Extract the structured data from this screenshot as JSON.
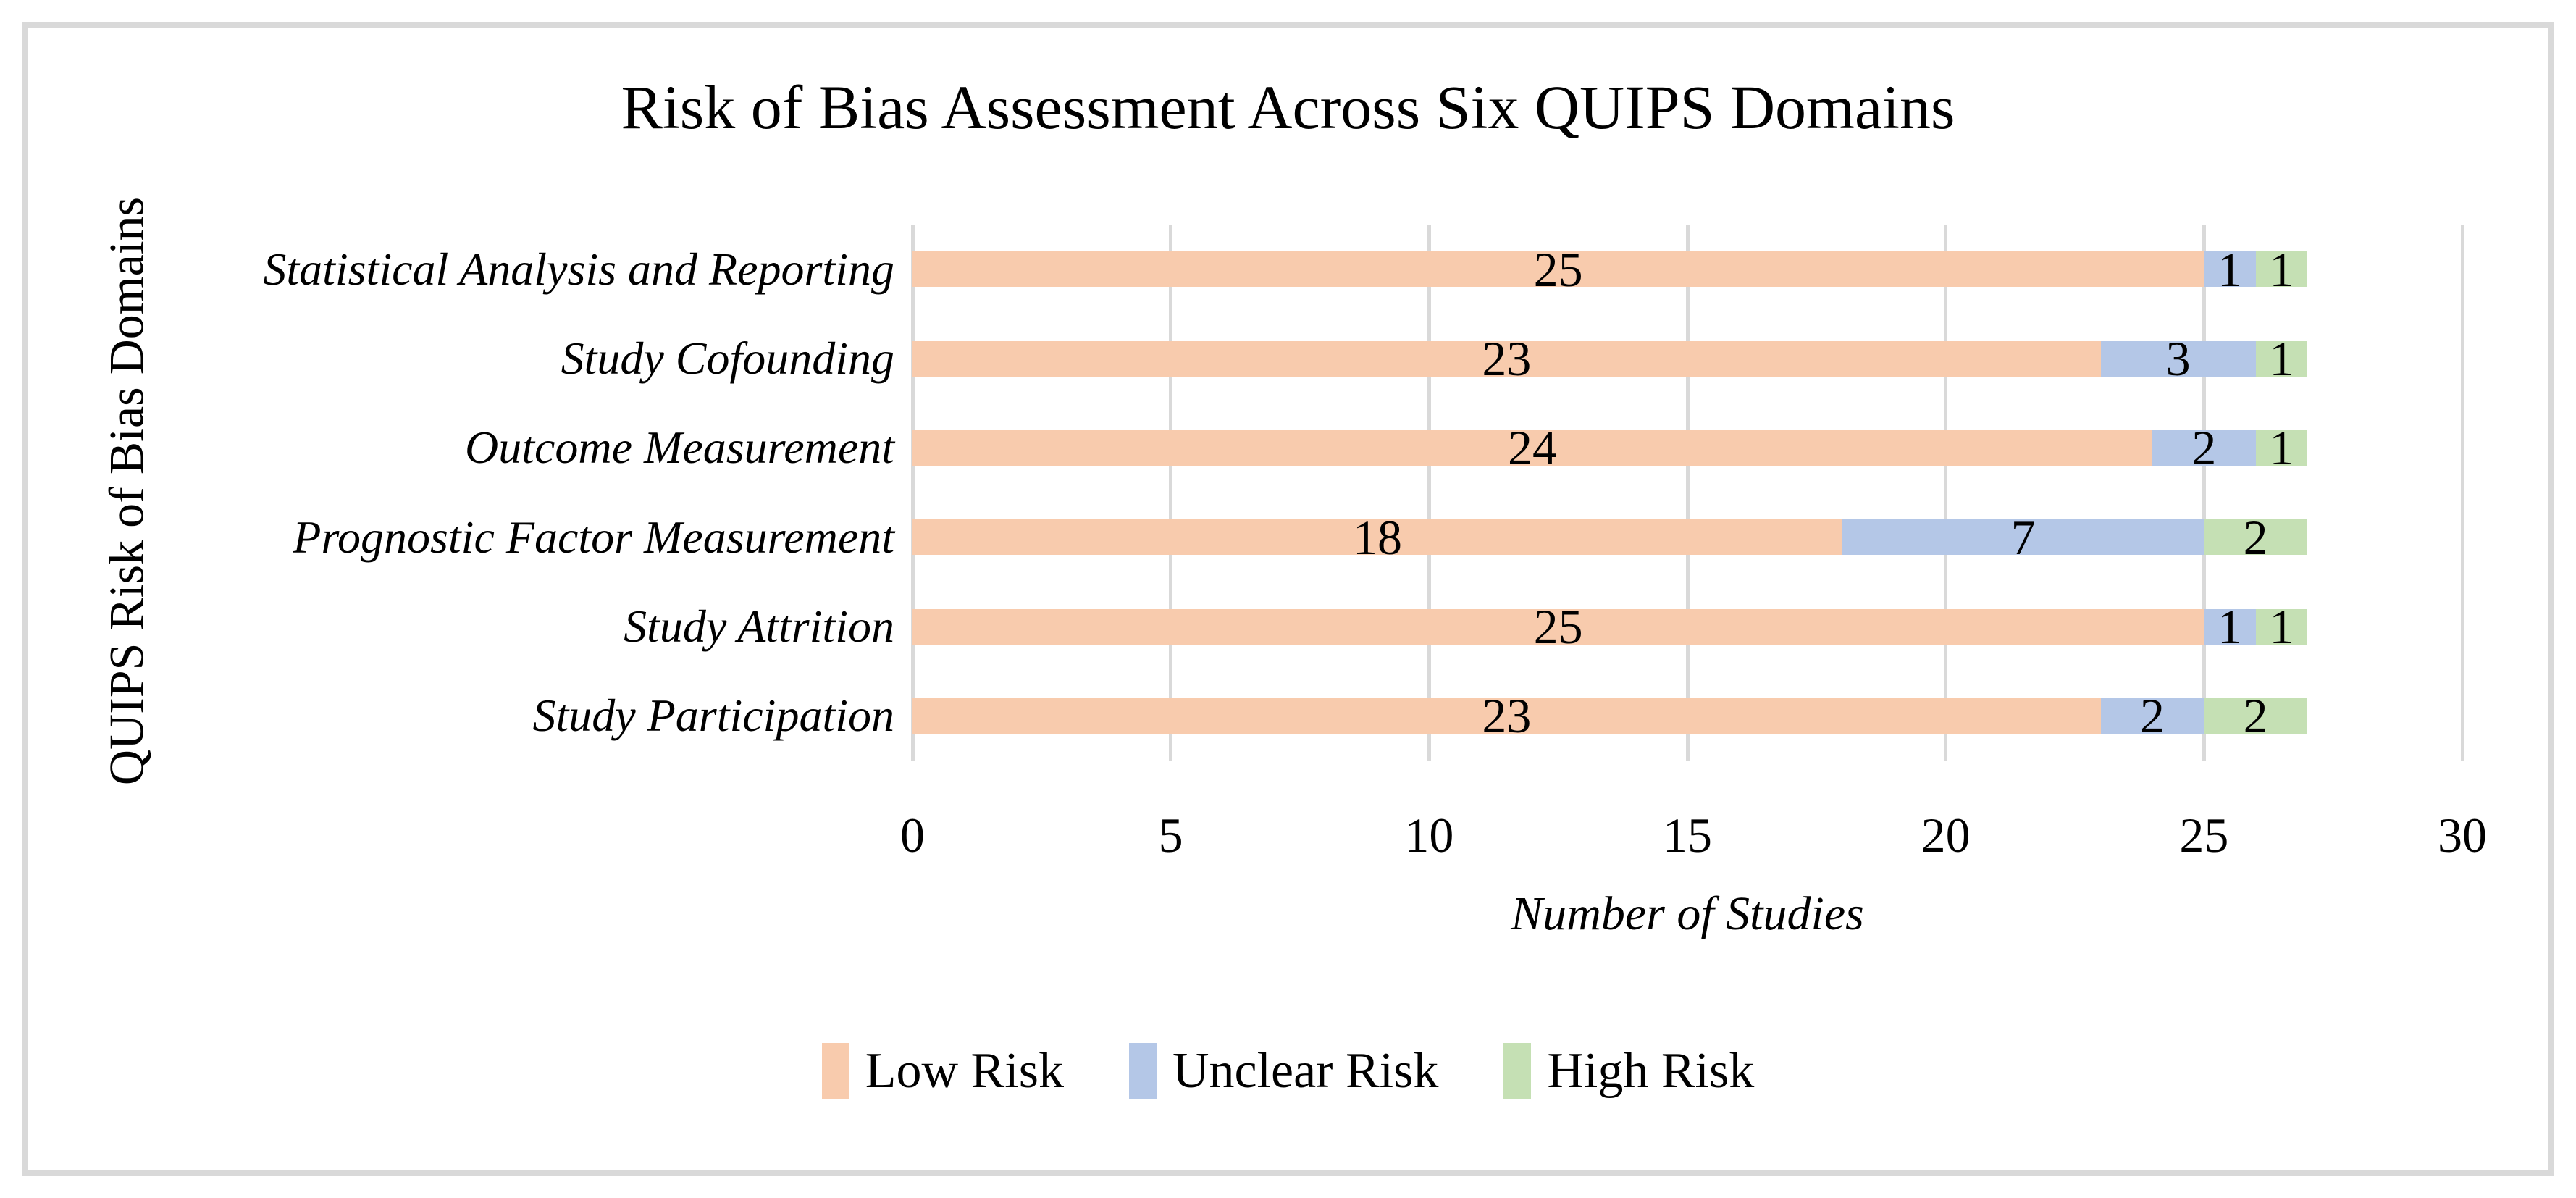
{
  "chart_data": {
    "type": "bar",
    "orientation": "horizontal",
    "stacked": true,
    "title": "Risk of Bias Assessment Across Six QUIPS Domains",
    "xlabel": "Number of Studies",
    "ylabel": "QUIPS Risk of Bias Domains",
    "categories": [
      "Statistical Analysis and Reporting",
      "Study Cofounding",
      "Outcome Measurement",
      "Prognostic Factor Measurement",
      "Study Attrition",
      "Study Participation"
    ],
    "series": [
      {
        "name": "Low Risk",
        "color": "#F8CBAD",
        "values": [
          25,
          23,
          24,
          18,
          25,
          23
        ]
      },
      {
        "name": "Unclear Risk",
        "color": "#B4C7E7",
        "values": [
          1,
          3,
          2,
          7,
          1,
          2
        ]
      },
      {
        "name": "High Risk",
        "color": "#C5E0B4",
        "values": [
          1,
          1,
          1,
          2,
          1,
          2
        ]
      }
    ],
    "xlim": [
      0,
      30
    ],
    "xticks": [
      0,
      5,
      10,
      15,
      20,
      25,
      30
    ],
    "grid": true,
    "legend_position": "bottom"
  },
  "colors": {
    "gridline": "#d9d9d9",
    "frame_border": "#d9d9d9",
    "text": "#000000",
    "background": "#ffffff"
  }
}
